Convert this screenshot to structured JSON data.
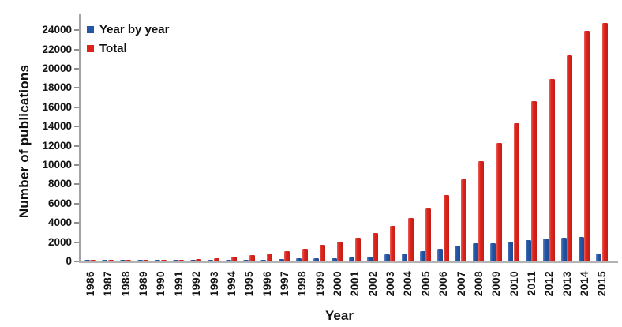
{
  "chart_data": {
    "type": "bar",
    "title": "",
    "xlabel": "Year",
    "ylabel": "Number of publications",
    "ylim": [
      0,
      24000
    ],
    "ytick_step": 2000,
    "grid": false,
    "legend_position": "top-left-inside",
    "categories": [
      "1986",
      "1987",
      "1988",
      "1989",
      "1990",
      "1991",
      "1992",
      "1993",
      "1994",
      "1995",
      "1996",
      "1997",
      "1998",
      "1999",
      "2000",
      "2001",
      "2002",
      "2003",
      "2004",
      "2005",
      "2006",
      "2007",
      "2008",
      "2009",
      "2010",
      "2011",
      "2012",
      "2013",
      "2014",
      "2015"
    ],
    "series": [
      {
        "name": "Year by year",
        "color": "#2356a7",
        "values": [
          15,
          15,
          20,
          25,
          30,
          40,
          65,
          120,
          140,
          180,
          180,
          220,
          300,
          350,
          350,
          400,
          500,
          700,
          850,
          1050,
          1350,
          1650,
          1850,
          1900,
          2050,
          2250,
          2350,
          2450,
          2550,
          800
        ]
      },
      {
        "name": "Total",
        "color": "#df231b",
        "values": [
          15,
          30,
          50,
          75,
          105,
          145,
          210,
          330,
          470,
          650,
          830,
          1050,
          1350,
          1700,
          2050,
          2450,
          2950,
          3650,
          4500,
          5550,
          6900,
          8550,
          10400,
          12300,
          14350,
          16600,
          18950,
          21400,
          23950,
          24750
        ]
      }
    ]
  },
  "colors": {
    "background": "#ffffff",
    "axis_line": "#a3a3a3",
    "baseline": "#b3b3b3",
    "tick": "#8f8f8f",
    "text": "#111111",
    "series_blue": "#2356a7",
    "series_red": "#df231b"
  }
}
